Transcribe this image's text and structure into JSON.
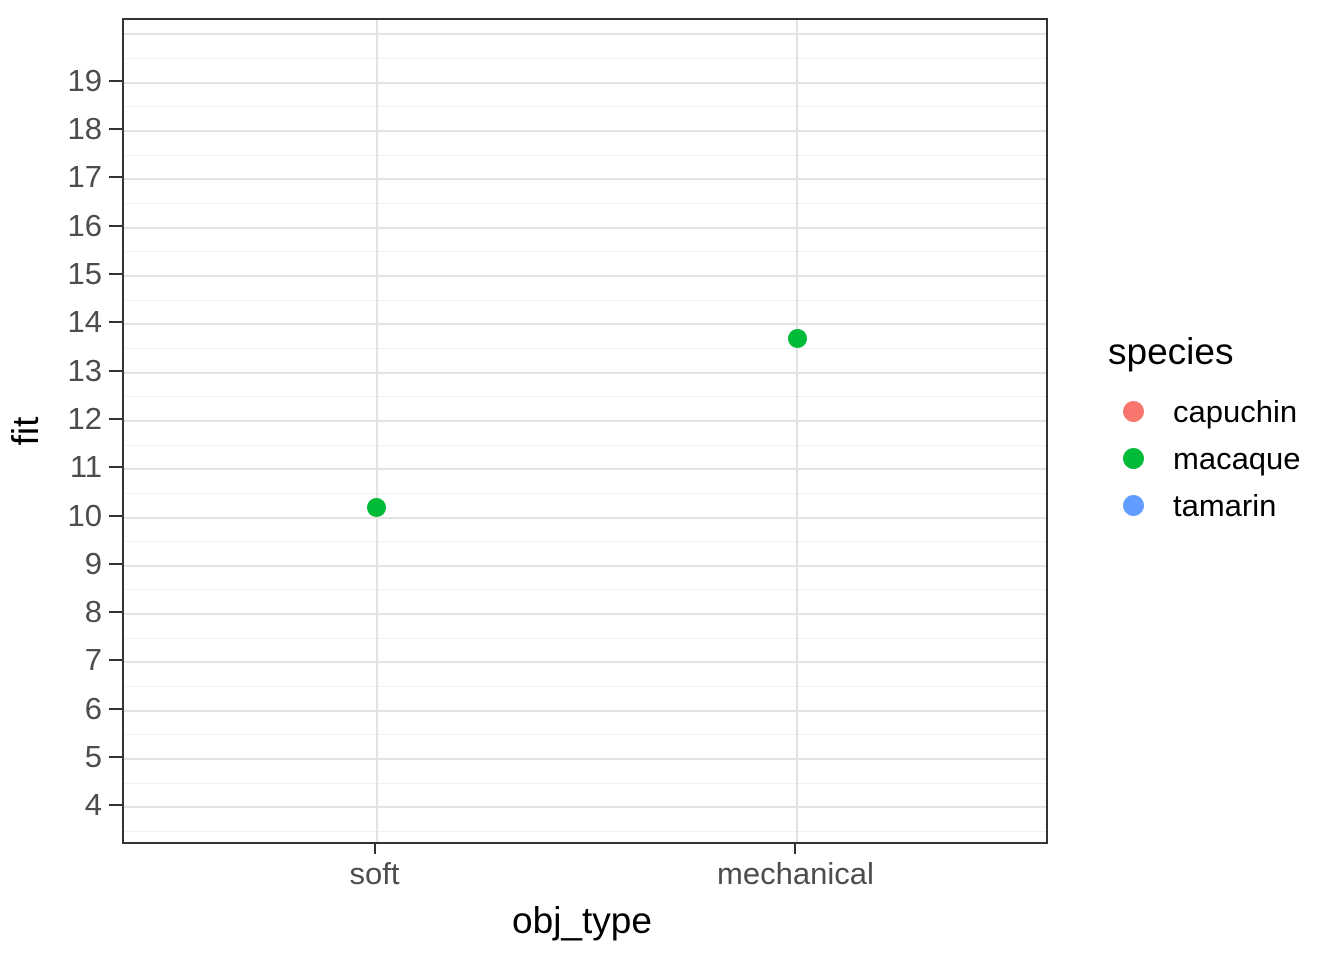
{
  "chart_data": {
    "type": "scatter",
    "title": "",
    "xlabel": "obj_type",
    "ylabel": "fit",
    "categories": [
      "soft",
      "mechanical"
    ],
    "series": [
      {
        "name": "capuchin",
        "color": "#F8766D",
        "values": [
          null,
          null
        ]
      },
      {
        "name": "macaque",
        "color": "#00BA38",
        "values": [
          10.2,
          13.7
        ]
      },
      {
        "name": "tamarin",
        "color": "#619CFF",
        "values": [
          null,
          null
        ]
      }
    ],
    "ylim": [
      3.2,
      20.3
    ],
    "y_tick_labels": [
      4,
      5,
      6,
      7,
      8,
      9,
      10,
      11,
      12,
      13,
      14,
      15,
      16,
      17,
      18,
      19
    ],
    "grid_major_y": [
      4,
      5,
      6,
      7,
      8,
      9,
      10,
      11,
      12,
      13,
      14,
      15,
      16,
      17,
      18,
      19,
      20
    ],
    "grid_minor_y": [
      3.5,
      4.5,
      5.5,
      6.5,
      7.5,
      8.5,
      9.5,
      10.5,
      11.5,
      12.5,
      13.5,
      14.5,
      15.5,
      16.5,
      17.5,
      18.5,
      19.5
    ],
    "grid": "on",
    "legend": {
      "title": "species",
      "position": "right",
      "entries": [
        {
          "label": "capuchin",
          "color": "#F8766D"
        },
        {
          "label": "macaque",
          "color": "#00BA38"
        },
        {
          "label": "tamarin",
          "color": "#619CFF"
        }
      ]
    }
  },
  "style": {
    "background": "#FFFFFF",
    "panel_border": "#333333",
    "tick_color": "#333333",
    "tick_label_color": "#4D4D4D",
    "axis_title_color": "#000000",
    "grid_major_color": "#E3E3E3",
    "grid_minor_color": "#F0F0F0"
  }
}
